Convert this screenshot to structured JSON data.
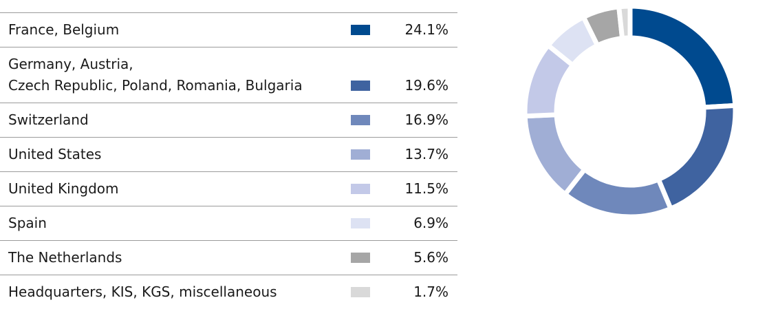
{
  "chart_data": {
    "type": "pie",
    "categories": [
      "France, Belgium",
      "Germany, Austria,\nCzech Republic, Poland, Romania, Bulgaria",
      "Switzerland",
      "United States",
      "United Kingdom",
      "Spain",
      "The Netherlands",
      "Headquarters, KIS, KGS, miscellaneous"
    ],
    "values": [
      24.1,
      19.6,
      16.9,
      13.7,
      11.5,
      6.9,
      5.6,
      1.7
    ],
    "value_labels": [
      "24.1%",
      "19.6%",
      "16.9%",
      "13.7%",
      "11.5%",
      "6.9%",
      "5.6%",
      "1.7%"
    ],
    "colors": [
      "#004a8f",
      "#3f63a0",
      "#6f88bb",
      "#a0aed5",
      "#c3c9e8",
      "#dde2f3",
      "#a6a6a6",
      "#d9d9d9"
    ]
  }
}
